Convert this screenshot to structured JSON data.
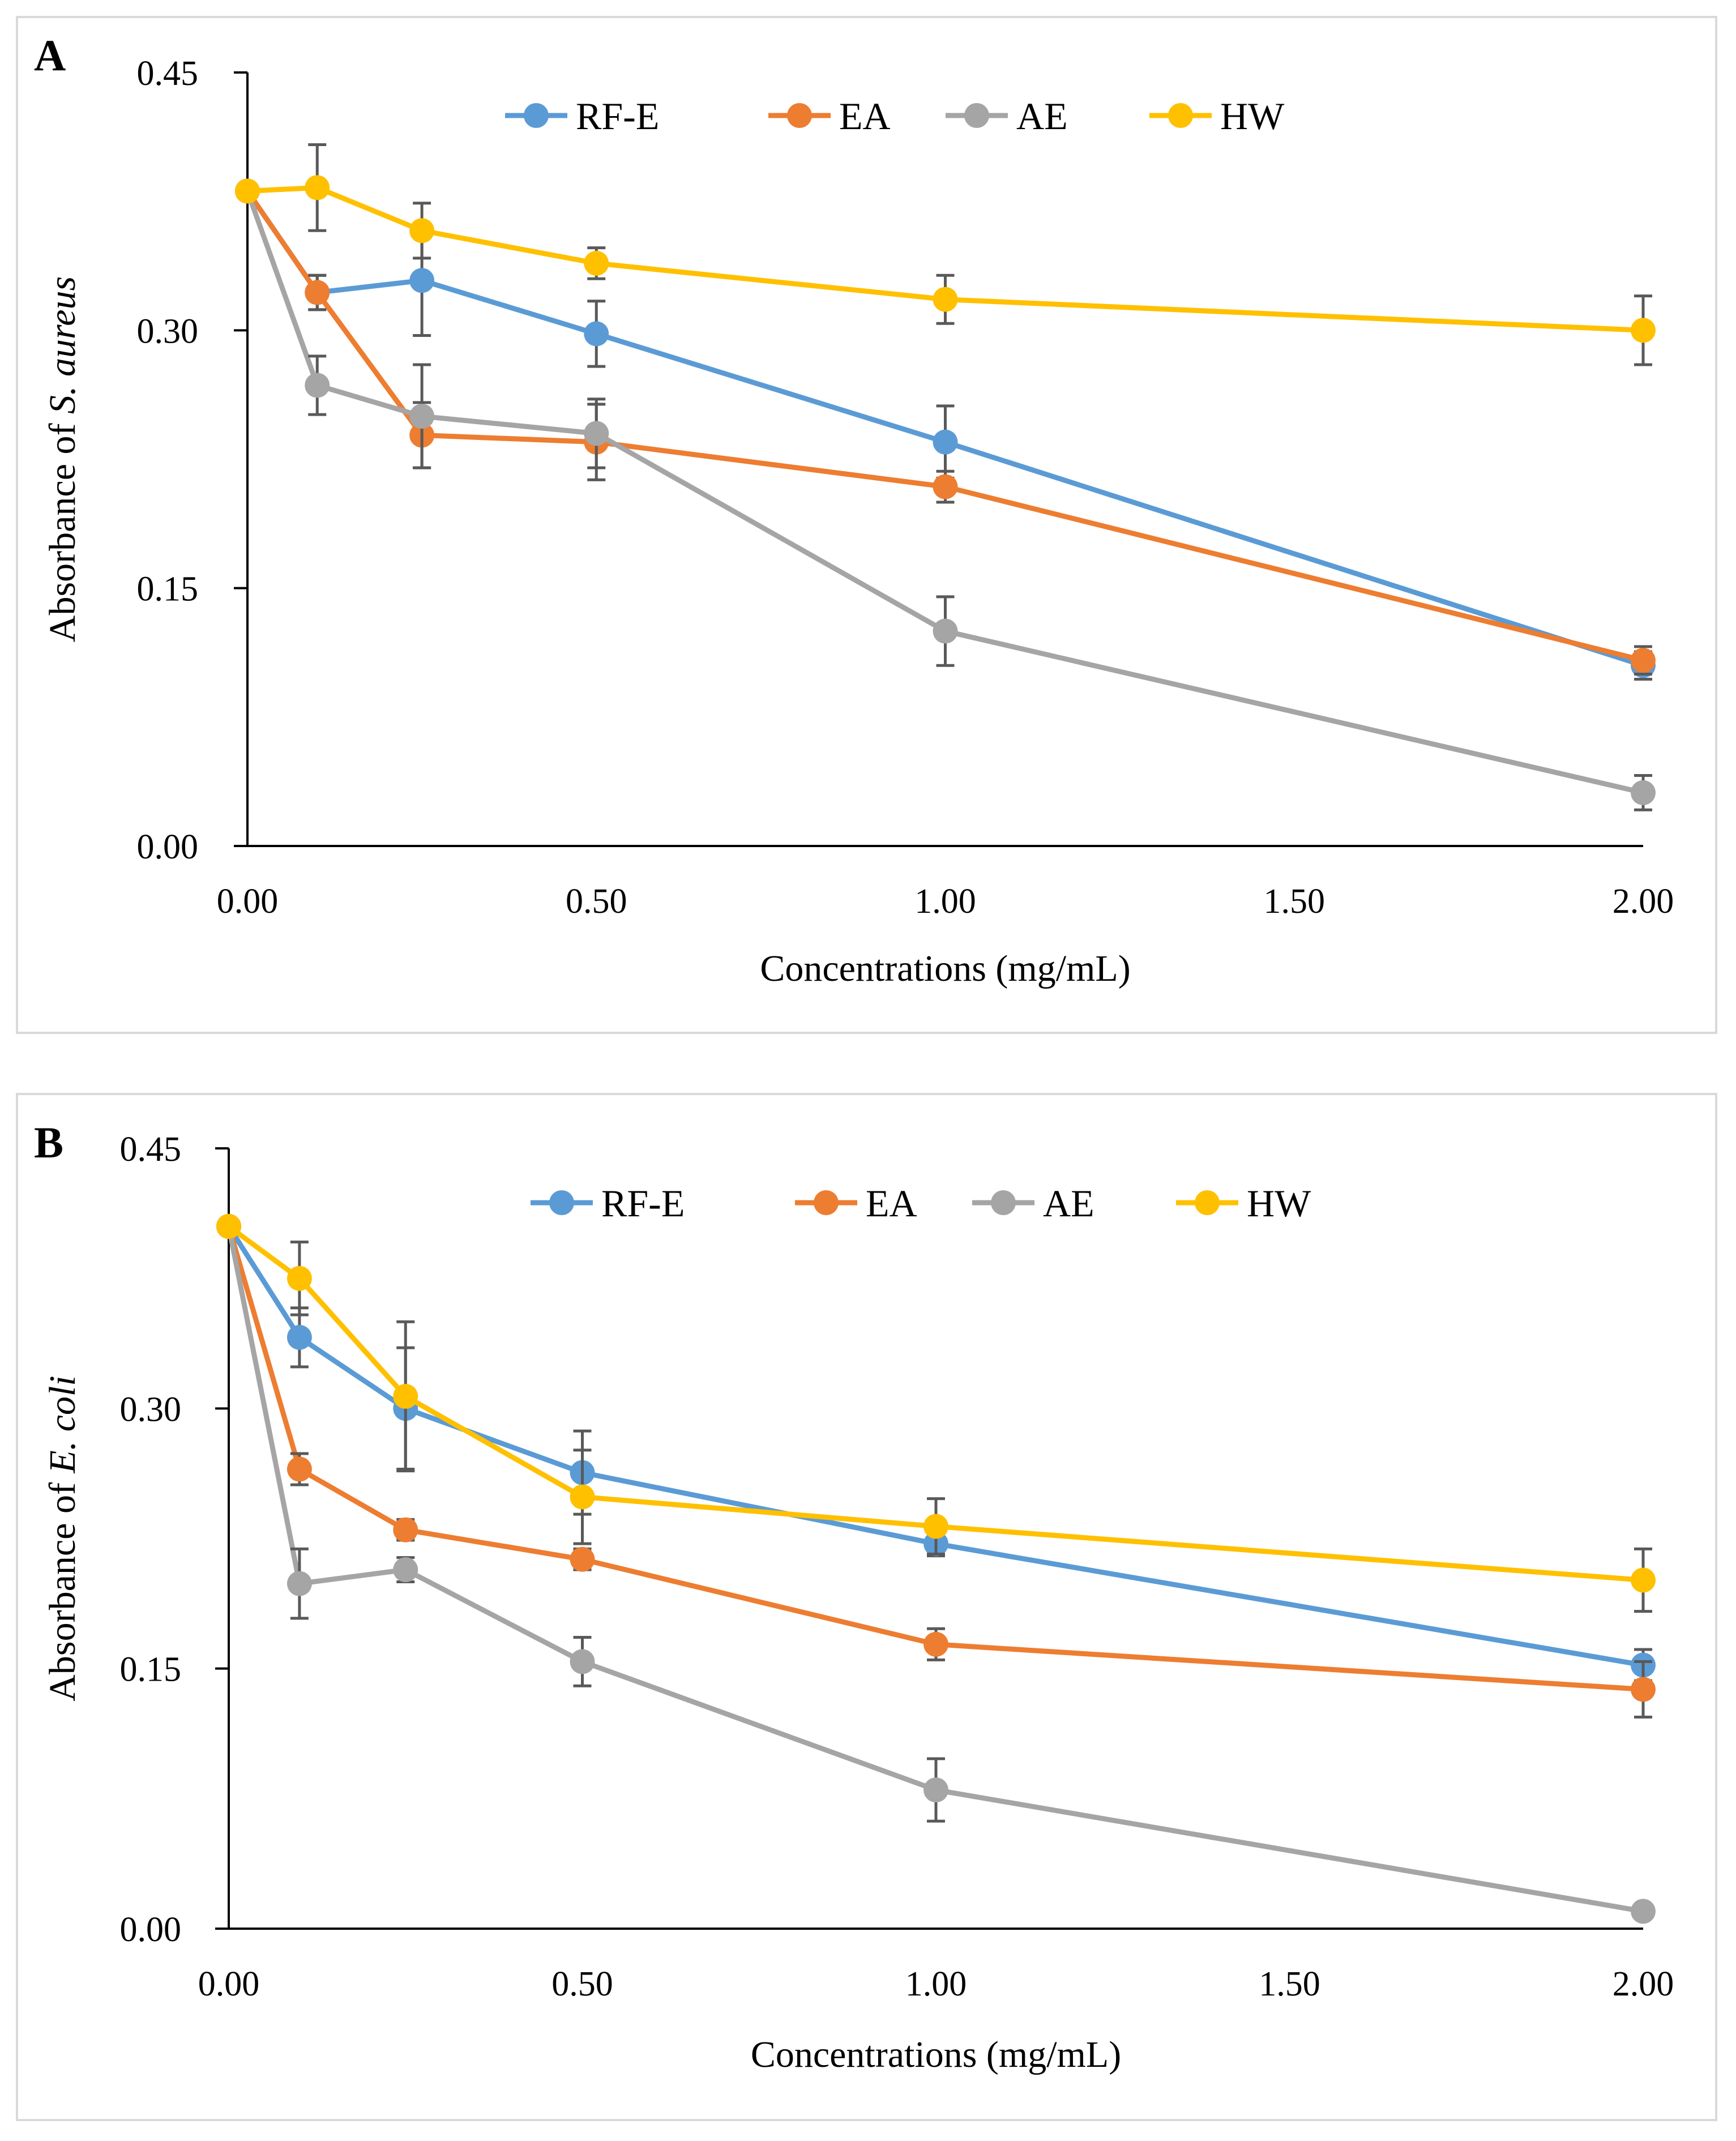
{
  "chart_data": [
    {
      "type": "line",
      "panel_label": "A",
      "title": "",
      "xlabel": "Concentrations (mg/mL)",
      "ylabel_prefix": "Absorbance  of ",
      "ylabel_species": "S. aureus",
      "xlim": [
        0,
        2
      ],
      "ylim": [
        0,
        0.45
      ],
      "x_axis_ticks": [
        "0.00",
        "0.50",
        "1.00",
        "1.50",
        "2.00"
      ],
      "y_axis_ticks": [
        "0.00",
        "0.15",
        "0.30",
        "0.45"
      ],
      "grid": false,
      "legend_position": "top-center",
      "series": [
        {
          "name": "RF-E",
          "color": "#5b9bd5",
          "x": [
            0,
            0.1,
            0.25,
            0.5,
            1,
            2
          ],
          "values": [
            0.381,
            0.322,
            0.329,
            0.298,
            0.235,
            0.105
          ],
          "errors": [
            0,
            0.01,
            0.032,
            0.019,
            0.021,
            0.008
          ]
        },
        {
          "name": "EA",
          "color": "#ed7d31",
          "x": [
            0,
            0.1,
            0.25,
            0.5,
            1,
            2
          ],
          "values": [
            0.381,
            0.322,
            0.239,
            0.235,
            0.209,
            0.108
          ],
          "errors": [
            0,
            0.01,
            0.019,
            0.022,
            0.009,
            0.008
          ]
        },
        {
          "name": "AE",
          "color": "#a5a5a5",
          "x": [
            0,
            0.1,
            0.25,
            0.5,
            1,
            2
          ],
          "values": [
            0.381,
            0.268,
            0.25,
            0.24,
            0.125,
            0.031
          ],
          "errors": [
            0,
            0.017,
            0.03,
            0.02,
            0.02,
            0.01
          ]
        },
        {
          "name": "HW",
          "color": "#ffc000",
          "x": [
            0,
            0.1,
            0.25,
            0.5,
            1,
            2
          ],
          "values": [
            0.381,
            0.383,
            0.358,
            0.339,
            0.318,
            0.3
          ],
          "errors": [
            0,
            0.025,
            0.016,
            0.009,
            0.014,
            0.02
          ]
        }
      ]
    },
    {
      "type": "line",
      "panel_label": "B",
      "title": "",
      "xlabel": "Concentrations (mg/mL)",
      "ylabel_prefix": "Absorbance  of ",
      "ylabel_species": "E. coli",
      "xlim": [
        0,
        2
      ],
      "ylim": [
        0,
        0.45
      ],
      "x_axis_ticks": [
        "0.00",
        "0.50",
        "1.00",
        "1.50",
        "2.00"
      ],
      "y_axis_ticks": [
        "0.00",
        "0.15",
        "0.30",
        "0.45"
      ],
      "grid": false,
      "legend_position": "top-center",
      "series": [
        {
          "name": "RF-E",
          "color": "#5b9bd5",
          "x": [
            0,
            0.1,
            0.25,
            0.5,
            1,
            2
          ],
          "values": [
            0.405,
            0.341,
            0.3,
            0.263,
            0.222,
            0.152
          ],
          "errors": [
            0,
            0.017,
            0.035,
            0.024,
            0.007,
            0.009
          ]
        },
        {
          "name": "EA",
          "color": "#ed7d31",
          "x": [
            0,
            0.1,
            0.25,
            0.5,
            1,
            2
          ],
          "values": [
            0.405,
            0.265,
            0.23,
            0.213,
            0.164,
            0.138
          ],
          "errors": [
            0,
            0.009,
            0.006,
            0.006,
            0.009,
            0.016
          ]
        },
        {
          "name": "AE",
          "color": "#a5a5a5",
          "x": [
            0,
            0.1,
            0.25,
            0.5,
            1,
            2
          ],
          "values": [
            0.405,
            0.199,
            0.207,
            0.154,
            0.08,
            0.01
          ],
          "errors": [
            0,
            0.02,
            0.007,
            0.014,
            0.018,
            0.004
          ]
        },
        {
          "name": "HW",
          "color": "#ffc000",
          "x": [
            0,
            0.1,
            0.25,
            0.5,
            1,
            2
          ],
          "values": [
            0.405,
            0.375,
            0.307,
            0.249,
            0.232,
            0.201
          ],
          "errors": [
            0,
            0.021,
            0.043,
            0.027,
            0.016,
            0.018
          ]
        }
      ]
    }
  ]
}
